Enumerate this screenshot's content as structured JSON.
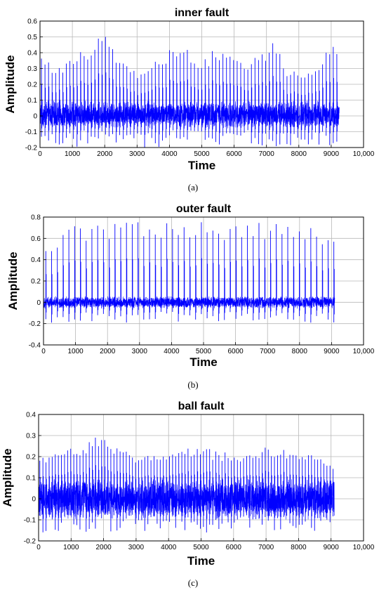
{
  "chart_data": [
    {
      "type": "line",
      "panel_label": "(a)",
      "title": "inner fault",
      "xlabel": "Time",
      "ylabel": "Amplitude",
      "xlim": [
        0,
        10000
      ],
      "ylim": [
        -0.2,
        0.6
      ],
      "x_ticks": [
        0,
        1000,
        2000,
        3000,
        4000,
        5000,
        6000,
        7000,
        8000,
        9000,
        10000
      ],
      "x_tick_labels": [
        "0",
        "1000",
        "2000",
        "3000",
        "4000",
        "5000",
        "6000",
        "7000",
        "8000",
        "9000",
        "10,000"
      ],
      "y_ticks": [
        -0.2,
        -0.1,
        0,
        0.1,
        0.2,
        0.3,
        0.4,
        0.5,
        0.6
      ],
      "y_tick_labels": [
        "-0.2",
        "-0.1",
        "0",
        "0.1",
        "0.2",
        "0.3",
        "0.4",
        "0.5",
        "0.6"
      ],
      "grid": true,
      "color": "#0000ff",
      "signal": {
        "length": 9250,
        "noise_band": [
          -0.08,
          0.1
        ],
        "impulse_period": 110,
        "envelope_x": [
          0,
          500,
          900,
          1300,
          1600,
          1900,
          2100,
          2400,
          2800,
          3100,
          3500,
          3900,
          4200,
          4600,
          5000,
          5300,
          5700,
          6000,
          6400,
          6800,
          7300,
          7600,
          8000,
          8400,
          8700,
          9000,
          9250
        ],
        "envelope_peak": [
          0.42,
          0.3,
          0.38,
          0.42,
          0.45,
          0.54,
          0.52,
          0.4,
          0.3,
          0.26,
          0.36,
          0.42,
          0.48,
          0.43,
          0.36,
          0.41,
          0.45,
          0.36,
          0.34,
          0.41,
          0.48,
          0.32,
          0.27,
          0.3,
          0.36,
          0.46,
          0.42
        ],
        "min_value": -0.2
      }
    },
    {
      "type": "line",
      "panel_label": "(b)",
      "title": "outer fault",
      "xlabel": "Time",
      "ylabel": "Amplitude",
      "xlim": [
        0,
        10000
      ],
      "ylim": [
        -0.4,
        0.8
      ],
      "x_ticks": [
        0,
        1000,
        2000,
        3000,
        4000,
        5000,
        6000,
        7000,
        8000,
        9000,
        10000
      ],
      "x_tick_labels": [
        "0",
        "1000",
        "2000",
        "3000",
        "4000",
        "5000",
        "6000",
        "7000",
        "8000",
        "9000",
        "10,000"
      ],
      "y_ticks": [
        -0.4,
        -0.2,
        0,
        0.2,
        0.4,
        0.6,
        0.8
      ],
      "y_tick_labels": [
        "-0.4",
        "-0.2",
        "0",
        "0.2",
        "0.4",
        "0.6",
        "0.8"
      ],
      "grid": true,
      "color": "#0000ff",
      "signal": {
        "length": 9100,
        "noise_band": [
          -0.06,
          0.06
        ],
        "impulse_period": 180,
        "envelope_x": [
          0,
          1000,
          2000,
          3000,
          4000,
          5000,
          6000,
          7000,
          8000,
          9100
        ],
        "envelope_peak": [
          0.55,
          0.72,
          0.74,
          0.76,
          0.74,
          0.76,
          0.74,
          0.76,
          0.72,
          0.66
        ],
        "min_value": -0.2
      }
    },
    {
      "type": "line",
      "panel_label": "(c)",
      "title": "ball fault",
      "xlabel": "Time",
      "ylabel": "Amplitude",
      "xlim": [
        0,
        10000
      ],
      "ylim": [
        -0.2,
        0.4
      ],
      "x_ticks": [
        0,
        1000,
        2000,
        3000,
        4000,
        5000,
        6000,
        7000,
        8000,
        9000,
        10000
      ],
      "x_tick_labels": [
        "0",
        "1000",
        "2000",
        "3000",
        "4000",
        "5000",
        "6000",
        "7000",
        "8000",
        "9000",
        "10,000"
      ],
      "y_ticks": [
        -0.2,
        -0.1,
        0,
        0.1,
        0.2,
        0.3,
        0.4
      ],
      "y_tick_labels": [
        "-0.2",
        "-0.1",
        "0",
        "0.1",
        "0.2",
        "0.3",
        "0.4"
      ],
      "grid": true,
      "color": "#0000ff",
      "signal": {
        "length": 9100,
        "noise_band": [
          -0.1,
          0.1
        ],
        "impulse_period": 95,
        "envelope_x": [
          0,
          800,
          1200,
          1600,
          1800,
          2200,
          2800,
          3400,
          4000,
          4600,
          5000,
          5600,
          6200,
          6800,
          7400,
          8000,
          8600,
          9100
        ],
        "envelope_peak": [
          0.2,
          0.24,
          0.25,
          0.29,
          0.31,
          0.26,
          0.22,
          0.21,
          0.2,
          0.26,
          0.24,
          0.23,
          0.22,
          0.24,
          0.25,
          0.23,
          0.2,
          0.17
        ],
        "min_value": -0.16
      }
    }
  ]
}
